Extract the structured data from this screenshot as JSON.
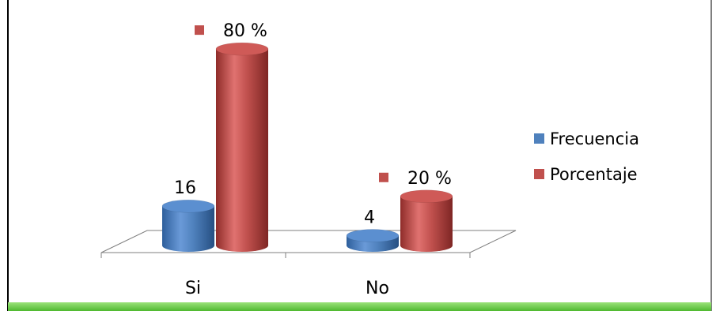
{
  "chart_data": {
    "type": "bar",
    "categories": [
      "Si",
      "No"
    ],
    "series": [
      {
        "name": "Frecuencia",
        "values": [
          16,
          4
        ],
        "labels": [
          "16",
          "4"
        ],
        "color": "#4f81bd"
      },
      {
        "name": "Porcentaje",
        "values": [
          80,
          20
        ],
        "labels": [
          "80 %",
          "20 %"
        ],
        "color": "#c0504d"
      }
    ],
    "title": "",
    "xlabel": "",
    "ylabel": "",
    "ylim": [
      0,
      90
    ],
    "grid": false,
    "legend_position": "right",
    "style": "3d-cylinder"
  }
}
